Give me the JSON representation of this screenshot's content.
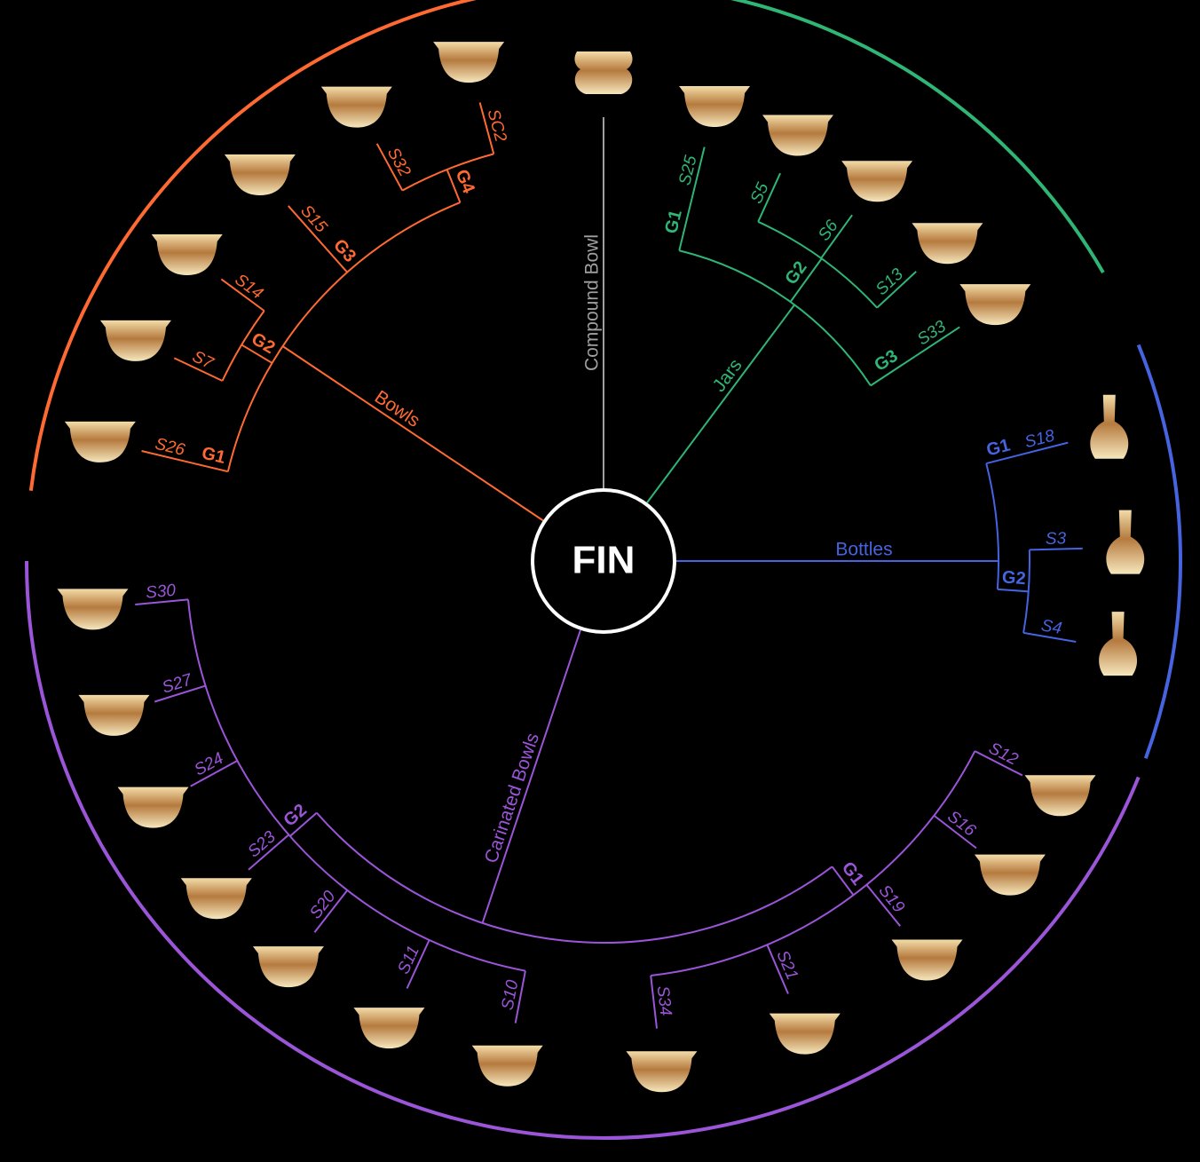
{
  "center": "FIN",
  "branches": [
    {
      "name": "Bowls",
      "groups": [
        {
          "label": "G1",
          "leaves": [
            "S26"
          ]
        },
        {
          "label": "G2",
          "leaves": [
            "S7",
            "S14"
          ]
        },
        {
          "label": "G3",
          "leaves": [
            "S15"
          ]
        },
        {
          "label": "G4",
          "leaves": [
            "S32",
            "SC2"
          ]
        }
      ]
    },
    {
      "name": "Compound Bowl",
      "groups": []
    },
    {
      "name": "Jars",
      "groups": [
        {
          "label": "G1",
          "leaves": [
            "S25"
          ]
        },
        {
          "label": "G2",
          "leaves": [
            "S5",
            "S6",
            "S13"
          ]
        },
        {
          "label": "G3",
          "leaves": [
            "S33"
          ]
        }
      ]
    },
    {
      "name": "Bottles",
      "groups": [
        {
          "label": "G1",
          "leaves": [
            "S18"
          ]
        },
        {
          "label": "G2",
          "leaves": [
            "S3",
            "S4"
          ]
        }
      ]
    },
    {
      "name": "Carinated Bowls",
      "groups": [
        {
          "label": "G1",
          "leaves": [
            "S12",
            "S16",
            "S19",
            "S21",
            "S34"
          ]
        },
        {
          "label": "G2",
          "leaves": [
            "S10",
            "S11",
            "S20",
            "S23",
            "S24",
            "S27",
            "S30"
          ]
        }
      ]
    }
  ]
}
